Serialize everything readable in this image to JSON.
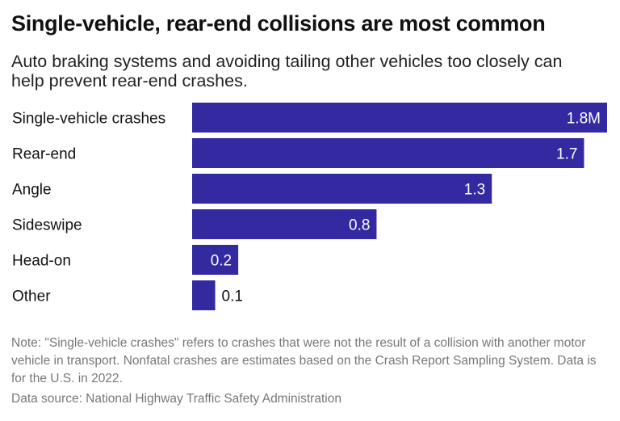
{
  "title": "Single-vehicle, rear-end collisions are most common",
  "subtitle": "Auto braking systems and avoiding tailing other vehicles too closely can help prevent rear-end crashes.",
  "note": "Note: \"Single-vehicle crashes\" refers to crashes that were not the result of a collision with another motor vehicle in transport. Nonfatal crashes are estimates based on the Crash Report Sampling System. Data is for the U.S. in 2022.",
  "source": "Data source: National Highway Traffic Safety Administration",
  "chart_data": {
    "type": "bar",
    "orientation": "horizontal",
    "categories": [
      "Single-vehicle crashes",
      "Rear-end",
      "Angle",
      "Sideswipe",
      "Head-on",
      "Other"
    ],
    "values": [
      1.8,
      1.7,
      1.3,
      0.8,
      0.2,
      0.1
    ],
    "data_labels": [
      "1.8M",
      "1.7",
      "1.3",
      "0.8",
      "0.2",
      "0.1"
    ],
    "xlim": [
      0,
      1.8
    ],
    "grid": false,
    "bar_color": "#3329a0"
  }
}
